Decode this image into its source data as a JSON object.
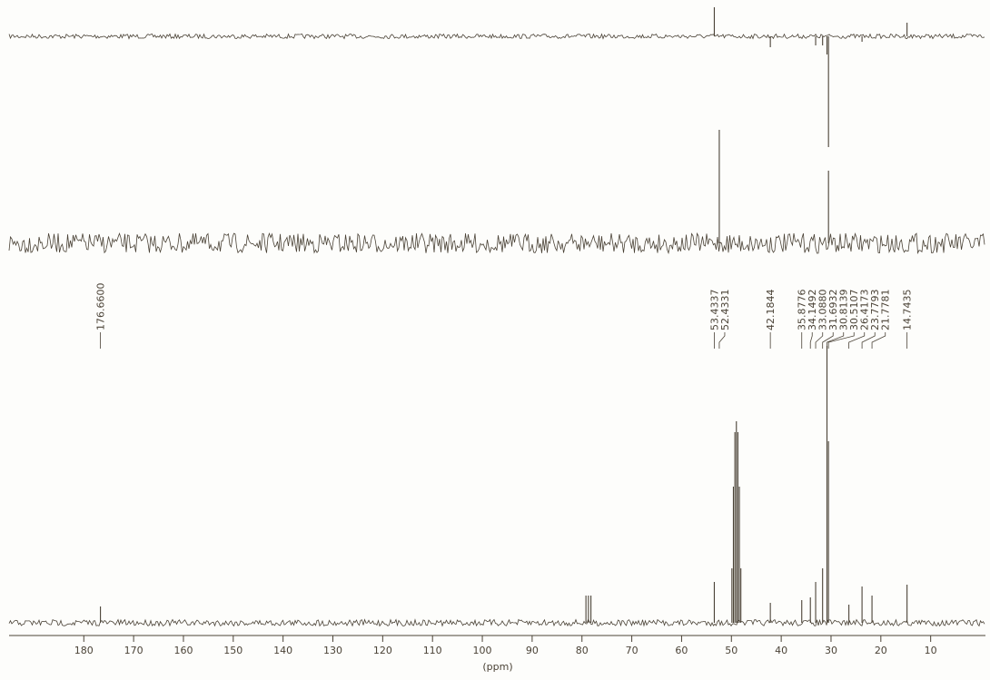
{
  "chart_data": {
    "type": "nmr",
    "xlabel": "(ppm)",
    "xlim": [
      195,
      -1
    ],
    "xticks": [
      180,
      170,
      160,
      150,
      140,
      130,
      120,
      110,
      100,
      90,
      80,
      70,
      60,
      50,
      40,
      30,
      20,
      10
    ],
    "color": "#4a4236",
    "peak_labels": [
      {
        "value": 176.66,
        "label": "176.6600"
      },
      {
        "value": 53.4337,
        "label": "53.4337"
      },
      {
        "value": 52.4331,
        "label": "52.4331"
      },
      {
        "value": 42.1844,
        "label": "42.1844"
      },
      {
        "value": 35.8776,
        "label": "35.8776"
      },
      {
        "value": 34.1492,
        "label": "34.1492"
      },
      {
        "value": 33.088,
        "label": "33.0880"
      },
      {
        "value": 31.6932,
        "label": "31.6932"
      },
      {
        "value": 30.8139,
        "label": "30.8139"
      },
      {
        "value": 30.5107,
        "label": "30.5107"
      },
      {
        "value": 26.4173,
        "label": "26.4173"
      },
      {
        "value": 23.7793,
        "label": "23.7793"
      },
      {
        "value": 21.7781,
        "label": "21.7781"
      },
      {
        "value": 14.7435,
        "label": "14.7435"
      }
    ],
    "series": [
      {
        "x": [
          53.4337,
          42.1844,
          33.088,
          31.6932,
          30.8139,
          30.5107,
          23.7793,
          14.7435
        ],
        "values": [
          32,
          -12,
          -10,
          -10,
          -20,
          -122,
          -6,
          15
        ]
      },
      {
        "x": [
          52.4331,
          30.5107
        ],
        "values": [
          125,
          80
        ]
      },
      {
        "x": [
          176.66,
          79.2,
          78.7,
          78.2,
          53.4337,
          49.9,
          49.6,
          49.3,
          49.0,
          48.7,
          48.4,
          48.1,
          42.1844,
          35.8776,
          34.1492,
          33.088,
          31.6932,
          30.8139,
          30.5107,
          26.4173,
          23.7793,
          21.7781,
          14.7435
        ],
        "values": [
          18,
          30,
          30,
          30,
          45,
          60,
          150,
          210,
          222,
          210,
          150,
          60,
          22,
          25,
          28,
          45,
          60,
          305,
          200,
          20,
          40,
          30,
          42
        ]
      }
    ]
  }
}
